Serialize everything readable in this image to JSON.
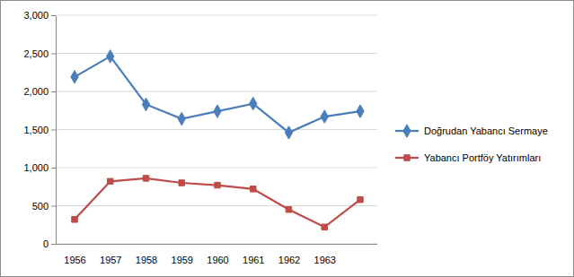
{
  "chart_data": {
    "type": "line",
    "categories": [
      "1956",
      "1957",
      "1958",
      "1959",
      "1960",
      "1961",
      "1962",
      "1963",
      null
    ],
    "series": [
      {
        "name": "Doğrudan Yabancı Sermaye",
        "color": "#4a7ebb",
        "marker": "diamond",
        "values": [
          2190,
          2460,
          1830,
          1640,
          1740,
          1840,
          1460,
          1670,
          1740
        ]
      },
      {
        "name": "Yabancı Portföy Yatırımları",
        "color": "#be4b48",
        "marker": "square",
        "values": [
          320,
          820,
          860,
          800,
          770,
          720,
          450,
          220,
          580
        ]
      }
    ],
    "ylim": [
      0,
      3000
    ],
    "yticks": [
      0,
      500,
      {
        "value": 1000,
        "label": "1,000"
      },
      {
        "value": 1500,
        "label": "1,500"
      },
      {
        "value": 2000,
        "label": "2,000"
      },
      {
        "value": 2500,
        "label": "2,500"
      },
      {
        "value": 3000,
        "label": "3,000"
      }
    ],
    "grid": true,
    "legend": "right"
  }
}
